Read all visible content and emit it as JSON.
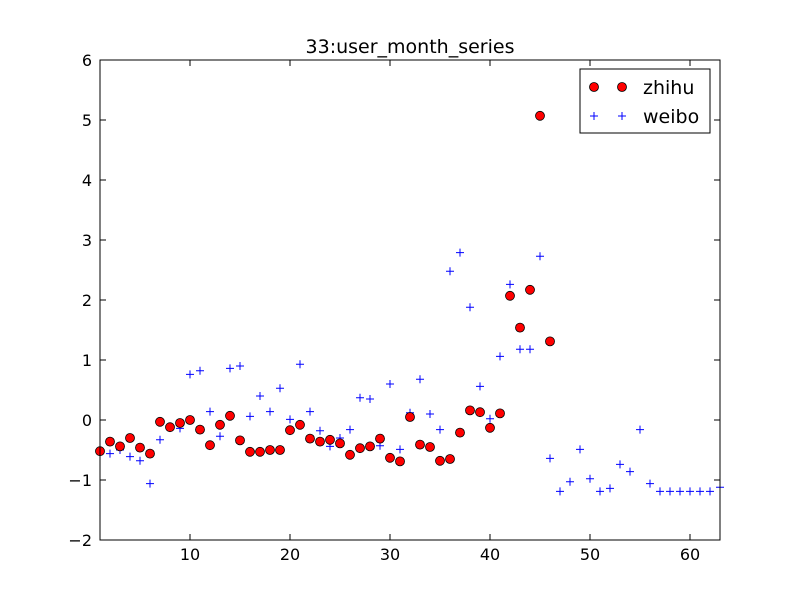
{
  "chart_data": {
    "type": "scatter",
    "title": "33:user_month_series",
    "xlabel": "",
    "ylabel": "",
    "xlim": [
      1,
      63
    ],
    "ylim": [
      -2,
      6
    ],
    "xticks": [
      10,
      20,
      30,
      40,
      50,
      60
    ],
    "yticks": [
      -2,
      -1,
      0,
      1,
      2,
      3,
      4,
      5,
      6
    ],
    "ytick_labels": [
      "−2",
      "−1",
      "0",
      "1",
      "2",
      "3",
      "4",
      "5",
      "6"
    ],
    "grid": false,
    "legend_position": "top-right",
    "series": [
      {
        "name": "zhihu",
        "marker": "circle",
        "color": "#ff0000",
        "x": [
          1,
          2,
          3,
          4,
          5,
          6,
          7,
          8,
          9,
          10,
          11,
          12,
          13,
          14,
          15,
          16,
          17,
          18,
          19,
          20,
          21,
          22,
          23,
          24,
          25,
          26,
          27,
          28,
          29,
          30,
          31,
          32,
          33,
          34,
          35,
          36,
          37,
          38,
          39,
          40,
          41,
          42,
          43,
          44,
          45,
          46
        ],
        "y": [
          -0.52,
          -0.36,
          -0.44,
          -0.3,
          -0.46,
          -0.56,
          -0.03,
          -0.12,
          -0.05,
          0.0,
          -0.16,
          -0.42,
          -0.08,
          0.07,
          -0.34,
          -0.53,
          -0.53,
          -0.5,
          -0.5,
          -0.17,
          -0.08,
          -0.31,
          -0.36,
          -0.33,
          -0.39,
          -0.58,
          -0.47,
          -0.44,
          -0.31,
          -0.63,
          -0.69,
          0.05,
          -0.41,
          -0.45,
          -0.68,
          -0.65,
          -0.21,
          0.16,
          0.13,
          -0.13,
          0.11,
          2.07,
          1.54,
          2.17,
          5.07,
          1.31
        ]
      },
      {
        "name": "weibo",
        "marker": "plus",
        "color": "#0000ff",
        "x": [
          1,
          2,
          3,
          4,
          5,
          6,
          7,
          8,
          9,
          10,
          11,
          12,
          13,
          14,
          15,
          16,
          17,
          18,
          19,
          20,
          21,
          22,
          23,
          24,
          25,
          26,
          27,
          28,
          29,
          30,
          31,
          32,
          33,
          34,
          35,
          36,
          37,
          38,
          39,
          40,
          41,
          42,
          43,
          44,
          45,
          46,
          47,
          48,
          49,
          50,
          51,
          52,
          53,
          54,
          55,
          56,
          57,
          58,
          59,
          60,
          61,
          62,
          63
        ],
        "y": [
          -0.5,
          -0.56,
          -0.5,
          -0.61,
          -0.68,
          -1.06,
          -0.33,
          -0.13,
          -0.14,
          0.76,
          0.82,
          0.14,
          -0.27,
          0.86,
          0.9,
          0.06,
          0.4,
          0.14,
          0.53,
          0.01,
          0.93,
          0.14,
          -0.18,
          -0.44,
          -0.3,
          -0.16,
          0.37,
          0.35,
          -0.43,
          0.6,
          -0.49,
          0.12,
          0.68,
          0.1,
          -0.16,
          2.48,
          2.79,
          1.88,
          0.56,
          0.02,
          1.06,
          2.26,
          1.18,
          1.18,
          2.73,
          -0.64,
          -1.19,
          -1.03,
          -0.49,
          -0.98,
          -1.19,
          -1.14,
          -0.74,
          -0.86,
          -0.16,
          -1.06,
          -1.19,
          -1.19,
          -1.19,
          -1.19,
          -1.19,
          -1.19,
          -1.12
        ]
      }
    ]
  }
}
